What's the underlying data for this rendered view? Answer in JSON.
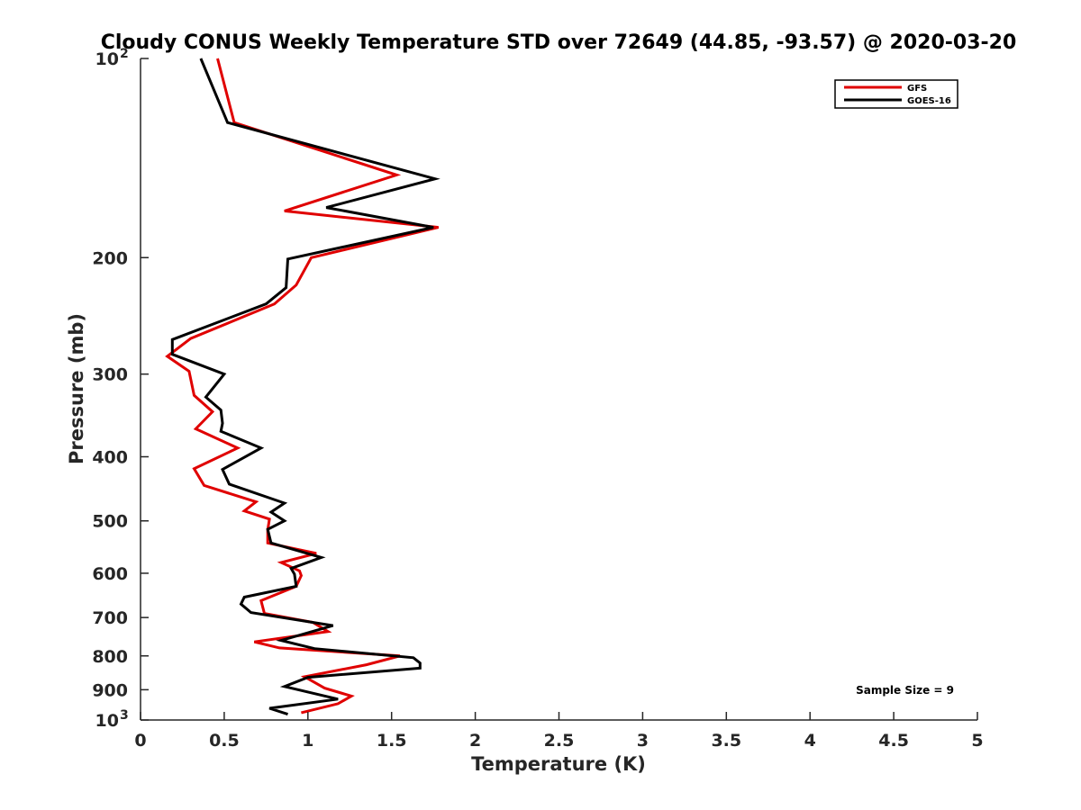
{
  "chart_data": {
    "type": "line",
    "title": "Cloudy CONUS Weekly Temperature STD over 72649 (44.85, -93.57) @ 2020-03-20",
    "xlabel": "Temperature (K)",
    "ylabel": "Pressure (mb)",
    "xlim": [
      0,
      5
    ],
    "ylim": [
      100,
      1000
    ],
    "yscale": "log",
    "y_reversed": true,
    "grid": false,
    "legend_position": "top-right",
    "xticks": [
      0,
      0.5,
      1,
      1.5,
      2,
      2.5,
      3,
      3.5,
      4,
      4.5,
      5
    ],
    "xtick_labels": [
      "0",
      "0.5",
      "1",
      "1.5",
      "2",
      "2.5",
      "3",
      "3.5",
      "4",
      "4.5",
      "5"
    ],
    "yticks": [
      100,
      200,
      300,
      400,
      500,
      600,
      700,
      800,
      900,
      1000
    ],
    "ytick_labels": [
      {
        "base": "10",
        "exp": "2"
      },
      {
        "base": "200",
        "exp": ""
      },
      {
        "base": "300",
        "exp": ""
      },
      {
        "base": "400",
        "exp": ""
      },
      {
        "base": "500",
        "exp": ""
      },
      {
        "base": "600",
        "exp": ""
      },
      {
        "base": "700",
        "exp": ""
      },
      {
        "base": "800",
        "exp": ""
      },
      {
        "base": "900",
        "exp": ""
      },
      {
        "base": "10",
        "exp": "3"
      }
    ],
    "annotation": "Sample Size = 9",
    "series": [
      {
        "name": "GFS",
        "color": "#e00000",
        "points": [
          [
            0.46,
            100
          ],
          [
            0.56,
            125
          ],
          [
            1.53,
            150
          ],
          [
            0.86,
            170
          ],
          [
            1.78,
            180
          ],
          [
            1.02,
            200
          ],
          [
            0.93,
            220
          ],
          [
            0.8,
            235
          ],
          [
            0.3,
            265
          ],
          [
            0.16,
            282
          ],
          [
            0.29,
            297
          ],
          [
            0.32,
            323
          ],
          [
            0.43,
            342
          ],
          [
            0.33,
            363
          ],
          [
            0.58,
            388
          ],
          [
            0.32,
            417
          ],
          [
            0.38,
            442
          ],
          [
            0.69,
            468
          ],
          [
            0.62,
            483
          ],
          [
            0.77,
            497
          ],
          [
            0.76,
            516
          ],
          [
            0.76,
            540
          ],
          [
            1.05,
            560
          ],
          [
            0.84,
            578
          ],
          [
            0.95,
            595
          ],
          [
            0.96,
            605
          ],
          [
            0.93,
            628
          ],
          [
            0.72,
            660
          ],
          [
            0.74,
            690
          ],
          [
            1.03,
            712
          ],
          [
            1.12,
            735
          ],
          [
            0.68,
            762
          ],
          [
            0.83,
            778
          ],
          [
            1.55,
            800
          ],
          [
            1.35,
            825
          ],
          [
            0.98,
            860
          ],
          [
            1.1,
            895
          ],
          [
            1.26,
            920
          ],
          [
            1.18,
            945
          ],
          [
            0.96,
            975
          ]
        ]
      },
      {
        "name": "GOES-16",
        "color": "#000000",
        "points": [
          [
            0.36,
            100
          ],
          [
            0.52,
            125
          ],
          [
            1.76,
            152
          ],
          [
            1.11,
            168
          ],
          [
            1.75,
            180
          ],
          [
            0.88,
            201
          ],
          [
            0.87,
            222
          ],
          [
            0.75,
            235
          ],
          [
            0.19,
            266
          ],
          [
            0.19,
            280
          ],
          [
            0.5,
            300
          ],
          [
            0.39,
            325
          ],
          [
            0.48,
            340
          ],
          [
            0.49,
            356
          ],
          [
            0.48,
            366
          ],
          [
            0.72,
            388
          ],
          [
            0.49,
            418
          ],
          [
            0.53,
            440
          ],
          [
            0.86,
            470
          ],
          [
            0.78,
            485
          ],
          [
            0.86,
            500
          ],
          [
            0.76,
            515
          ],
          [
            0.78,
            540
          ],
          [
            1.08,
            568
          ],
          [
            0.9,
            590
          ],
          [
            0.92,
            602
          ],
          [
            0.93,
            628
          ],
          [
            0.62,
            652
          ],
          [
            0.6,
            668
          ],
          [
            0.66,
            688
          ],
          [
            1.15,
            720
          ],
          [
            0.84,
            758
          ],
          [
            1.04,
            780
          ],
          [
            1.63,
            805
          ],
          [
            1.67,
            820
          ],
          [
            1.67,
            835
          ],
          [
            1.0,
            862
          ],
          [
            0.86,
            890
          ],
          [
            1.18,
            930
          ],
          [
            0.77,
            960
          ],
          [
            0.88,
            980
          ]
        ]
      }
    ]
  }
}
